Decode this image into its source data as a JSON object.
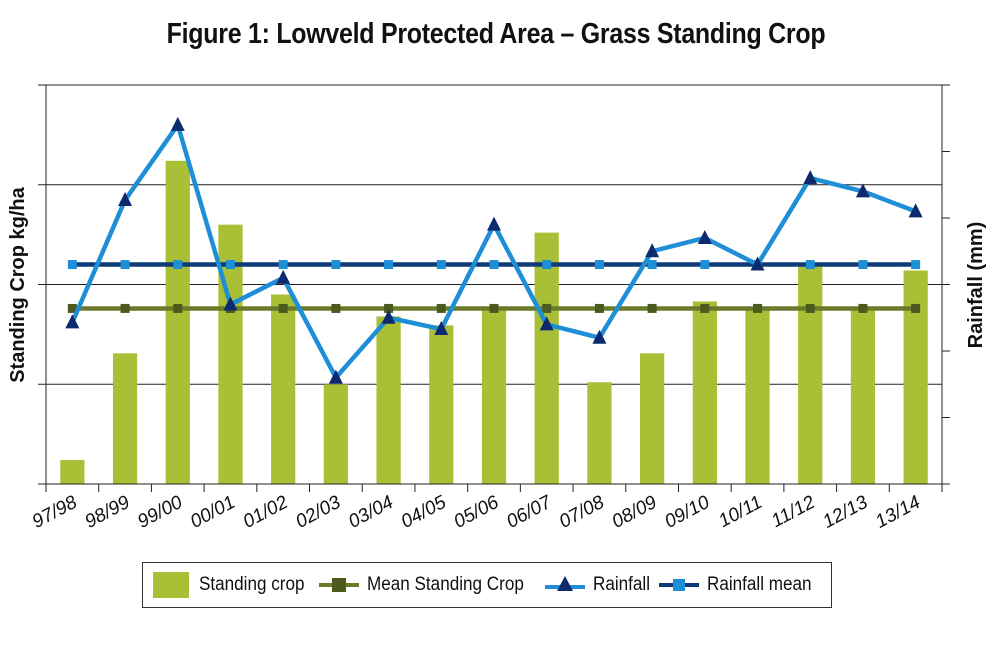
{
  "chart_data": {
    "type": "bar",
    "title": "Figure 1: Lowveld Protected Area – Grass Standing Crop",
    "ylabel": "Standing Crop kg/ha",
    "y2label": "Rainfall (mm)",
    "categories": [
      "97/98",
      "98/99",
      "99/00",
      "00/01",
      "01/02",
      "02/03",
      "03/04",
      "04/05",
      "05/06",
      "06/07",
      "07/08",
      "08/09",
      "09/10",
      "10/11",
      "11/12",
      "12/13",
      "13/14"
    ],
    "ylim": [
      0,
      4
    ],
    "y2lim": [
      0,
      6
    ],
    "grid": true,
    "legend_position": "bottom",
    "series": [
      {
        "name": "Standing crop",
        "type": "bar",
        "axis": "left",
        "color": "#a9bf36",
        "values": [
          0.24,
          1.31,
          3.24,
          2.6,
          1.9,
          1.0,
          1.68,
          1.59,
          1.76,
          2.52,
          1.02,
          1.31,
          1.83,
          1.76,
          2.2,
          1.78,
          2.14
        ]
      },
      {
        "name": "Mean Standing Crop",
        "type": "line",
        "axis": "left",
        "color": "#6b7a2a",
        "marker": "square",
        "values": [
          1.76,
          1.76,
          1.76,
          1.76,
          1.76,
          1.76,
          1.76,
          1.76,
          1.76,
          1.76,
          1.76,
          1.76,
          1.76,
          1.76,
          1.76,
          1.76,
          1.76
        ]
      },
      {
        "name": "Rainfall",
        "type": "line",
        "axis": "right",
        "color": "#1e8fd6",
        "marker": "triangle",
        "marker_color": "#0d2a6e",
        "values": [
          2.43,
          4.27,
          5.4,
          2.7,
          3.1,
          1.6,
          2.5,
          2.33,
          3.9,
          2.4,
          2.2,
          3.5,
          3.7,
          3.3,
          4.6,
          4.4,
          4.1
        ]
      },
      {
        "name": "Rainfall mean",
        "type": "line",
        "axis": "right",
        "color": "#0d3b78",
        "marker": "square",
        "marker_color": "#1e8fd6",
        "values": [
          3.3,
          3.3,
          3.3,
          3.3,
          3.3,
          3.3,
          3.3,
          3.3,
          3.3,
          3.3,
          3.3,
          3.3,
          3.3,
          3.3,
          3.3,
          3.3,
          3.3
        ]
      }
    ]
  }
}
